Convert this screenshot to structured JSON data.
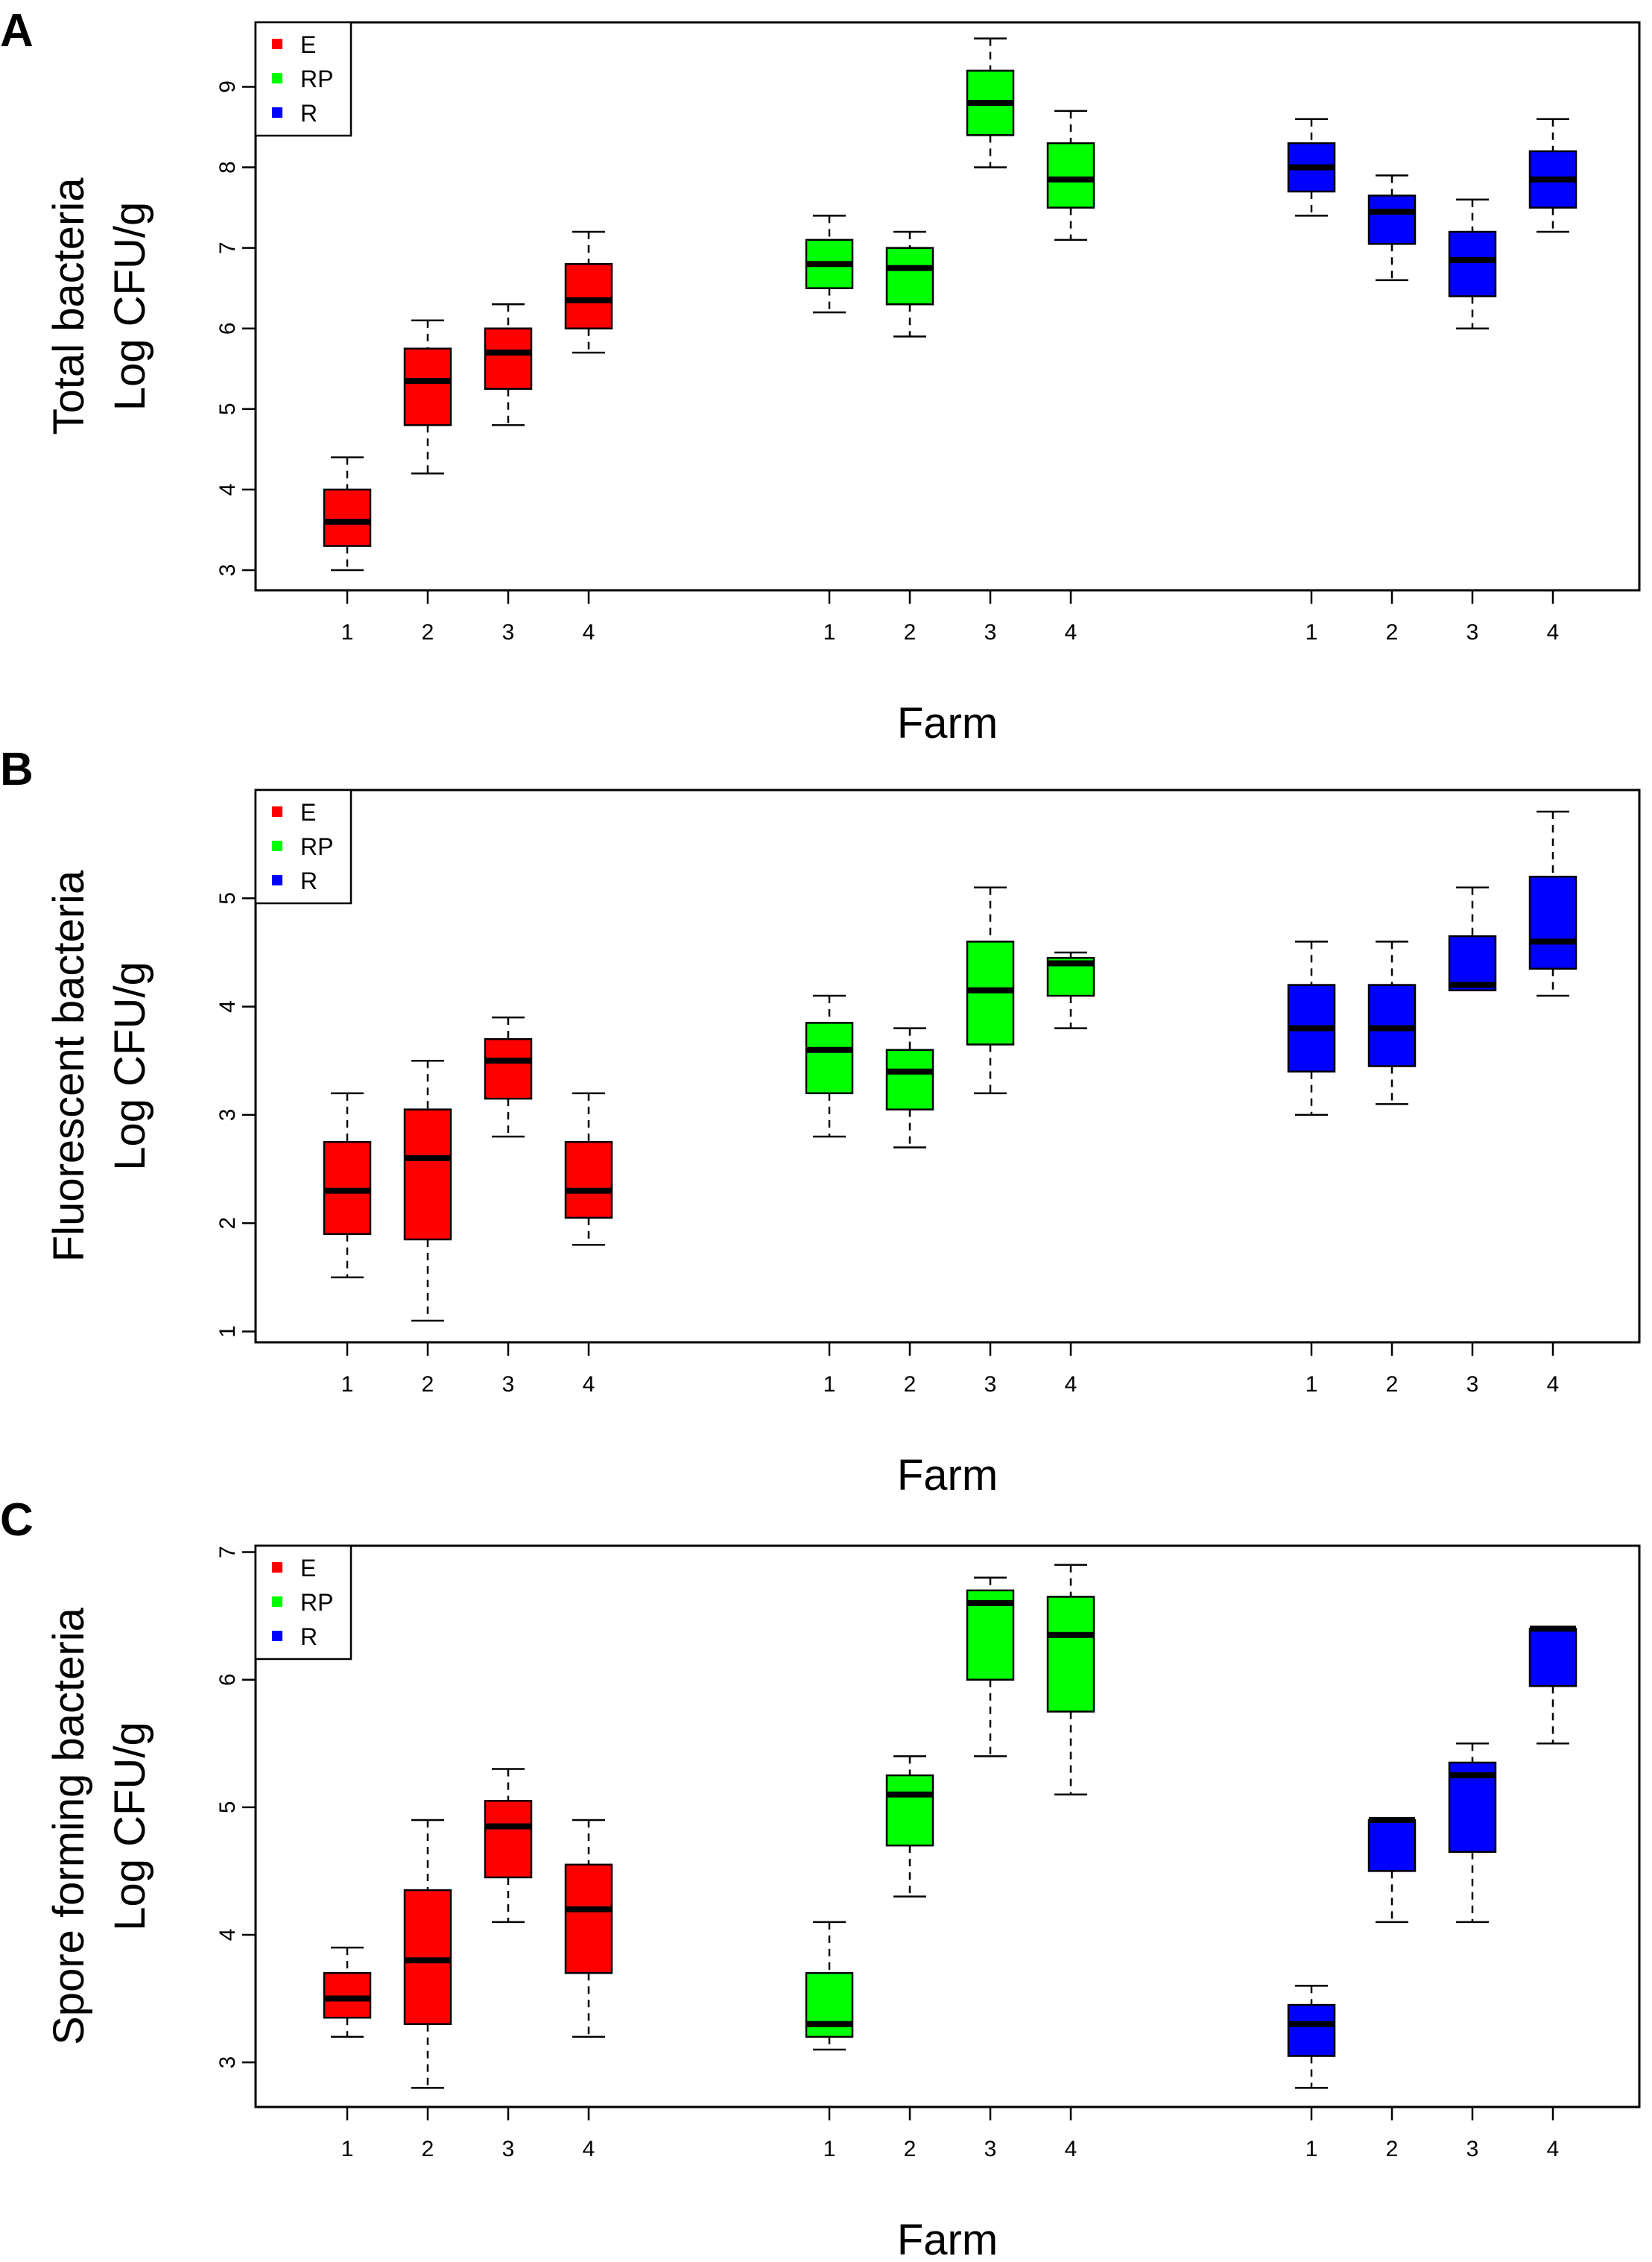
{
  "colors": {
    "E": "#ff0000",
    "RP": "#00ff00",
    "R": "#0000ff"
  },
  "chart_data": [
    {
      "panel": "A",
      "type": "boxplot",
      "ylabel_line1": "Total bacteria",
      "ylabel_line2": "Log CFU/g",
      "xlabel": "Farm",
      "ylim": [
        2.75,
        9.8
      ],
      "yticks": [
        3,
        4,
        5,
        6,
        7,
        8,
        9
      ],
      "legend": [
        "E",
        "RP",
        "R"
      ],
      "groups": [
        {
          "name": "E",
          "boxes": [
            {
              "farm": "1",
              "min": 3.0,
              "q1": 3.3,
              "median": 3.6,
              "q3": 4.0,
              "max": 4.4
            },
            {
              "farm": "2",
              "min": 4.2,
              "q1": 4.8,
              "median": 5.35,
              "q3": 5.75,
              "max": 6.1
            },
            {
              "farm": "3",
              "min": 4.8,
              "q1": 5.25,
              "median": 5.7,
              "q3": 6.0,
              "max": 6.3
            },
            {
              "farm": "4",
              "min": 5.7,
              "q1": 6.0,
              "median": 6.35,
              "q3": 6.8,
              "max": 7.2
            }
          ]
        },
        {
          "name": "RP",
          "boxes": [
            {
              "farm": "1",
              "min": 6.2,
              "q1": 6.5,
              "median": 6.8,
              "q3": 7.1,
              "max": 7.4
            },
            {
              "farm": "2",
              "min": 5.9,
              "q1": 6.3,
              "median": 6.75,
              "q3": 7.0,
              "max": 7.2
            },
            {
              "farm": "3",
              "min": 8.0,
              "q1": 8.4,
              "median": 8.8,
              "q3": 9.2,
              "max": 9.6
            },
            {
              "farm": "4",
              "min": 7.1,
              "q1": 7.5,
              "median": 7.85,
              "q3": 8.3,
              "max": 8.7
            }
          ]
        },
        {
          "name": "R",
          "boxes": [
            {
              "farm": "1",
              "min": 7.4,
              "q1": 7.7,
              "median": 8.0,
              "q3": 8.3,
              "max": 8.6
            },
            {
              "farm": "2",
              "min": 6.6,
              "q1": 7.05,
              "median": 7.45,
              "q3": 7.65,
              "max": 7.9
            },
            {
              "farm": "3",
              "min": 6.0,
              "q1": 6.4,
              "median": 6.85,
              "q3": 7.2,
              "max": 7.6
            },
            {
              "farm": "4",
              "min": 7.2,
              "q1": 7.5,
              "median": 7.85,
              "q3": 8.2,
              "max": 8.6
            }
          ]
        }
      ]
    },
    {
      "panel": "B",
      "type": "boxplot",
      "ylabel_line1": "Fluorescent bacteria",
      "ylabel_line2": "Log CFU/g",
      "xlabel": "Farm",
      "ylim": [
        0.9,
        6.0
      ],
      "yticks": [
        1,
        2,
        3,
        4,
        5
      ],
      "legend": [
        "E",
        "RP",
        "R"
      ],
      "groups": [
        {
          "name": "E",
          "boxes": [
            {
              "farm": "1",
              "min": 1.5,
              "q1": 1.9,
              "median": 2.3,
              "q3": 2.75,
              "max": 3.2
            },
            {
              "farm": "2",
              "min": 1.1,
              "q1": 1.85,
              "median": 2.6,
              "q3": 3.05,
              "max": 3.5
            },
            {
              "farm": "3",
              "min": 2.8,
              "q1": 3.15,
              "median": 3.5,
              "q3": 3.7,
              "max": 3.9
            },
            {
              "farm": "4",
              "min": 1.8,
              "q1": 2.05,
              "median": 2.3,
              "q3": 2.75,
              "max": 3.2
            }
          ]
        },
        {
          "name": "RP",
          "boxes": [
            {
              "farm": "1",
              "min": 2.8,
              "q1": 3.2,
              "median": 3.6,
              "q3": 3.85,
              "max": 4.1
            },
            {
              "farm": "2",
              "min": 2.7,
              "q1": 3.05,
              "median": 3.4,
              "q3": 3.6,
              "max": 3.8
            },
            {
              "farm": "3",
              "min": 3.2,
              "q1": 3.65,
              "median": 4.15,
              "q3": 4.6,
              "max": 5.1
            },
            {
              "farm": "4",
              "min": 3.8,
              "q1": 4.1,
              "median": 4.4,
              "q3": 4.45,
              "max": 4.5
            }
          ]
        },
        {
          "name": "R",
          "boxes": [
            {
              "farm": "1",
              "min": 3.0,
              "q1": 3.4,
              "median": 3.8,
              "q3": 4.2,
              "max": 4.6
            },
            {
              "farm": "2",
              "min": 3.1,
              "q1": 3.45,
              "median": 3.8,
              "q3": 4.2,
              "max": 4.6
            },
            {
              "farm": "3",
              "min": 4.15,
              "q1": 4.15,
              "median": 4.2,
              "q3": 4.65,
              "max": 5.1
            },
            {
              "farm": "4",
              "min": 4.1,
              "q1": 4.35,
              "median": 4.6,
              "q3": 5.2,
              "max": 5.8
            }
          ]
        }
      ]
    },
    {
      "panel": "C",
      "type": "boxplot",
      "ylabel_line1": "Spore forming bacteria",
      "ylabel_line2": "Log CFU/g",
      "xlabel": "Farm",
      "ylim": [
        2.65,
        7.05
      ],
      "yticks": [
        3,
        4,
        5,
        6,
        7
      ],
      "legend": [
        "E",
        "RP",
        "R"
      ],
      "groups": [
        {
          "name": "E",
          "boxes": [
            {
              "farm": "1",
              "min": 3.2,
              "q1": 3.35,
              "median": 3.5,
              "q3": 3.7,
              "max": 3.9
            },
            {
              "farm": "2",
              "min": 2.8,
              "q1": 3.3,
              "median": 3.8,
              "q3": 4.35,
              "max": 4.9
            },
            {
              "farm": "3",
              "min": 4.1,
              "q1": 4.45,
              "median": 4.85,
              "q3": 5.05,
              "max": 5.3
            },
            {
              "farm": "4",
              "min": 3.2,
              "q1": 3.7,
              "median": 4.2,
              "q3": 4.55,
              "max": 4.9
            }
          ]
        },
        {
          "name": "RP",
          "boxes": [
            {
              "farm": "1",
              "min": 3.1,
              "q1": 3.2,
              "median": 3.3,
              "q3": 3.7,
              "max": 4.1
            },
            {
              "farm": "2",
              "min": 4.3,
              "q1": 4.7,
              "median": 5.1,
              "q3": 5.25,
              "max": 5.4
            },
            {
              "farm": "3",
              "min": 5.4,
              "q1": 6.0,
              "median": 6.6,
              "q3": 6.7,
              "max": 6.8
            },
            {
              "farm": "4",
              "min": 5.1,
              "q1": 5.75,
              "median": 6.35,
              "q3": 6.65,
              "max": 6.9
            }
          ]
        },
        {
          "name": "R",
          "boxes": [
            {
              "farm": "1",
              "min": 2.8,
              "q1": 3.05,
              "median": 3.3,
              "q3": 3.45,
              "max": 3.6
            },
            {
              "farm": "2",
              "min": 4.1,
              "q1": 4.5,
              "median": 4.9,
              "q3": 4.9,
              "max": 4.9
            },
            {
              "farm": "3",
              "min": 4.1,
              "q1": 4.65,
              "median": 5.25,
              "q3": 5.35,
              "max": 5.5
            },
            {
              "farm": "4",
              "min": 5.5,
              "q1": 5.95,
              "median": 6.4,
              "q3": 6.4,
              "max": 6.4
            }
          ]
        }
      ]
    }
  ]
}
